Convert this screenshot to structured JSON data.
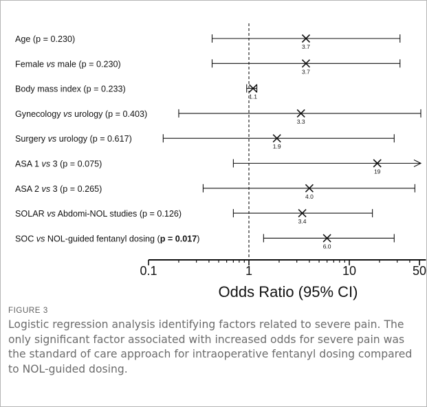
{
  "chart_data": {
    "type": "forest",
    "xlabel": "Odds Ratio (95% CI)",
    "xscale": "log",
    "xlim": [
      0.1,
      60
    ],
    "xticks": [
      {
        "value": 0.1,
        "label": "0.1"
      },
      {
        "value": 1,
        "label": "1"
      },
      {
        "value": 10,
        "label": "10"
      },
      {
        "value": 50,
        "label": "50"
      }
    ],
    "reference_line": 1,
    "rows": [
      {
        "label_parts": [
          {
            "text": "Age (p = 0.230)"
          }
        ],
        "or": 3.7,
        "or_label": "3.7",
        "lo": 0.43,
        "hi": 32
      },
      {
        "label_parts": [
          {
            "text": "Female "
          },
          {
            "text": "vs",
            "italic": true
          },
          {
            "text": " male (p = 0.230)"
          }
        ],
        "or": 3.7,
        "or_label": "3.7",
        "lo": 0.43,
        "hi": 32
      },
      {
        "label_parts": [
          {
            "text": "Body mass index (p = 0.233)"
          }
        ],
        "or": 1.1,
        "or_label": "1.1",
        "lo": 0.95,
        "hi": 1.2
      },
      {
        "label_parts": [
          {
            "text": "Gynecology "
          },
          {
            "text": "vs",
            "italic": true
          },
          {
            "text": " urology (p = 0.403)"
          }
        ],
        "or": 3.3,
        "or_label": "3.3",
        "lo": 0.2,
        "hi": 52
      },
      {
        "label_parts": [
          {
            "text": "Surgery "
          },
          {
            "text": "vs",
            "italic": true
          },
          {
            "text": " urology (p = 0.617)"
          }
        ],
        "or": 1.9,
        "or_label": "1.9",
        "lo": 0.14,
        "hi": 28
      },
      {
        "label_parts": [
          {
            "text": "ASA 1 "
          },
          {
            "text": "vs",
            "italic": true
          },
          {
            "text": " 3 (p = 0.075)"
          }
        ],
        "or": 19,
        "or_label": "19",
        "lo": 0.7,
        "hi": 60,
        "arrow": true
      },
      {
        "label_parts": [
          {
            "text": "ASA 2 "
          },
          {
            "text": "vs",
            "italic": true
          },
          {
            "text": " 3 (p = 0.265)"
          }
        ],
        "or": 4.0,
        "or_label": "4.0",
        "lo": 0.35,
        "hi": 45
      },
      {
        "label_parts": [
          {
            "text": "SOLAR "
          },
          {
            "text": "vs",
            "italic": true
          },
          {
            "text": " Abdomi-NOL studies (p = 0.126)"
          }
        ],
        "or": 3.4,
        "or_label": "3.4",
        "lo": 0.7,
        "hi": 17
      },
      {
        "label_parts": [
          {
            "text": "SOC "
          },
          {
            "text": "vs",
            "italic": true
          },
          {
            "text": " NOL-guided fentanyl dosing ("
          },
          {
            "text": "p = 0.017",
            "bold": true
          },
          {
            "text": ")"
          }
        ],
        "or": 6.0,
        "or_label": "6.0",
        "lo": 1.4,
        "hi": 28
      }
    ]
  },
  "caption": {
    "label": "FIGURE 3",
    "text": "Logistic regression analysis identifying factors related to severe pain. The only significant factor associated with increased odds for severe pain was the standard of care approach for intraoperative fentanyl dosing compared to NOL-guided dosing."
  },
  "colors": {
    "border": "#b5b5b5",
    "ink": "#111111",
    "caption_label": "#5e5e5e",
    "caption_text": "#6b6b6b"
  }
}
